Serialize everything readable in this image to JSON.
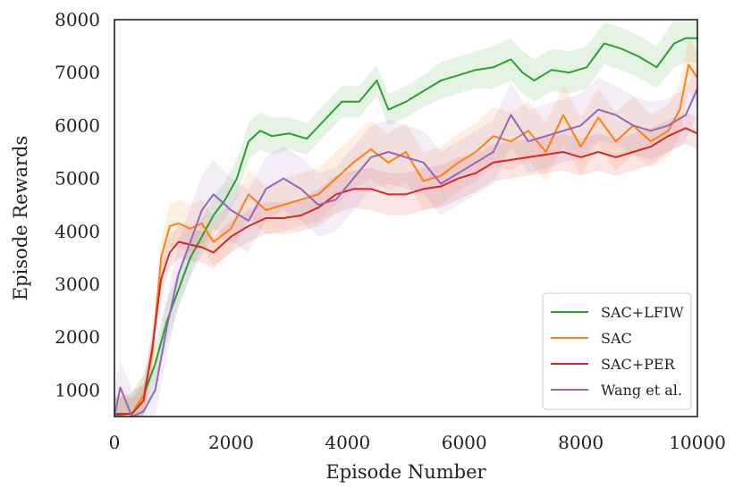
{
  "chart_data": {
    "type": "line",
    "title": "",
    "xlabel": "Episode Number",
    "ylabel": "Episode Rewards",
    "xlim": [
      0,
      10000
    ],
    "ylim": [
      500,
      8000
    ],
    "xticks": [
      0,
      2000,
      4000,
      6000,
      8000,
      10000
    ],
    "yticks": [
      1000,
      2000,
      3000,
      4000,
      5000,
      6000,
      7000,
      8000
    ],
    "grid": false,
    "legend_position": "lower-right",
    "series": [
      {
        "name": "SAC+LFIW",
        "color": "#2ca02c",
        "x": [
          0,
          300,
          500,
          700,
          900,
          1100,
          1300,
          1500,
          1700,
          1900,
          2100,
          2300,
          2500,
          2700,
          3000,
          3300,
          3600,
          3900,
          4200,
          4500,
          4700,
          5000,
          5300,
          5600,
          5900,
          6200,
          6500,
          6800,
          7000,
          7200,
          7500,
          7800,
          8100,
          8400,
          8700,
          9000,
          9300,
          9600,
          9800,
          10000
        ],
        "y": [
          520,
          560,
          900,
          1500,
          2300,
          2900,
          3500,
          3900,
          4300,
          4600,
          5000,
          5700,
          5900,
          5800,
          5850,
          5750,
          6100,
          6450,
          6450,
          6850,
          6300,
          6450,
          6650,
          6850,
          6950,
          7050,
          7100,
          7250,
          7000,
          6850,
          7050,
          7000,
          7100,
          7550,
          7450,
          7300,
          7100,
          7550,
          7650,
          7650
        ],
        "band": [
          300,
          400,
          400,
          400,
          400,
          350,
          350,
          350,
          350,
          350,
          350,
          350,
          350,
          350,
          300,
          300,
          300,
          300,
          300,
          300,
          300,
          300,
          300,
          350,
          350,
          350,
          400,
          400,
          400,
          400,
          400,
          400,
          400,
          400,
          400,
          400,
          400,
          450,
          450,
          450
        ]
      },
      {
        "name": "SAC",
        "color": "#ff7f0e",
        "x": [
          0,
          300,
          500,
          650,
          800,
          950,
          1100,
          1300,
          1500,
          1700,
          2000,
          2300,
          2600,
          2900,
          3200,
          3500,
          3800,
          4100,
          4400,
          4700,
          5000,
          5300,
          5600,
          5900,
          6200,
          6500,
          6800,
          7100,
          7400,
          7700,
          8000,
          8300,
          8600,
          8900,
          9200,
          9500,
          9700,
          9850,
          10000
        ],
        "y": [
          550,
          550,
          900,
          1700,
          3500,
          4100,
          4150,
          4050,
          4150,
          3800,
          4050,
          4700,
          4400,
          4500,
          4600,
          4700,
          5000,
          5300,
          5550,
          5300,
          5500,
          4950,
          5050,
          5300,
          5500,
          5800,
          5700,
          5900,
          5500,
          6200,
          5600,
          6150,
          5700,
          6000,
          5700,
          5900,
          6300,
          7150,
          6900
        ],
        "band": [
          350,
          350,
          350,
          350,
          350,
          400,
          450,
          450,
          450,
          450,
          450,
          450,
          450,
          500,
          500,
          500,
          500,
          500,
          550,
          550,
          550,
          550,
          550,
          550,
          550,
          550,
          550,
          550,
          550,
          550,
          550,
          550,
          550,
          550,
          500,
          500,
          500,
          500,
          500
        ]
      },
      {
        "name": "SAC+PER",
        "color": "#d62728",
        "x": [
          0,
          300,
          500,
          650,
          800,
          950,
          1100,
          1300,
          1500,
          1700,
          2000,
          2300,
          2600,
          2900,
          3200,
          3500,
          3800,
          4100,
          4400,
          4700,
          5000,
          5300,
          5600,
          5900,
          6200,
          6500,
          6800,
          7100,
          7400,
          7700,
          8000,
          8300,
          8600,
          8900,
          9200,
          9500,
          9800,
          10000
        ],
        "y": [
          550,
          550,
          800,
          1800,
          3100,
          3600,
          3800,
          3750,
          3700,
          3600,
          3900,
          4100,
          4250,
          4250,
          4300,
          4450,
          4700,
          4800,
          4800,
          4700,
          4700,
          4800,
          4850,
          5000,
          5100,
          5300,
          5350,
          5400,
          5450,
          5500,
          5400,
          5500,
          5400,
          5500,
          5600,
          5800,
          5950,
          5850
        ],
        "band": [
          300,
          300,
          300,
          300,
          300,
          300,
          300,
          300,
          300,
          300,
          300,
          300,
          300,
          300,
          300,
          350,
          350,
          350,
          400,
          400,
          400,
          400,
          400,
          400,
          350,
          350,
          350,
          350,
          350,
          350,
          350,
          350,
          350,
          350,
          350,
          300,
          300,
          300
        ]
      },
      {
        "name": "Wang et al.",
        "color": "#9467bd",
        "x": [
          0,
          100,
          300,
          500,
          700,
          900,
          1100,
          1300,
          1500,
          1700,
          2000,
          2300,
          2600,
          2900,
          3200,
          3500,
          3800,
          4100,
          4400,
          4700,
          5000,
          5300,
          5600,
          5900,
          6200,
          6500,
          6800,
          7100,
          7400,
          7700,
          8000,
          8300,
          8600,
          8900,
          9200,
          9500,
          9800,
          10000
        ],
        "y": [
          500,
          1050,
          500,
          600,
          1000,
          2200,
          3200,
          3800,
          4400,
          4700,
          4400,
          4200,
          4800,
          5000,
          4800,
          4500,
          4600,
          5000,
          5400,
          5500,
          5400,
          5300,
          4900,
          5100,
          5300,
          5500,
          6200,
          5700,
          5800,
          5900,
          6000,
          6300,
          6200,
          6000,
          5900,
          6000,
          6200,
          6700
        ],
        "band": [
          500,
          500,
          500,
          500,
          500,
          550,
          600,
          650,
          650,
          650,
          600,
          600,
          600,
          600,
          600,
          600,
          600,
          600,
          600,
          600,
          600,
          600,
          600,
          600,
          600,
          600,
          600,
          600,
          600,
          600,
          600,
          600,
          550,
          550,
          550,
          500,
          500,
          450
        ]
      }
    ]
  }
}
